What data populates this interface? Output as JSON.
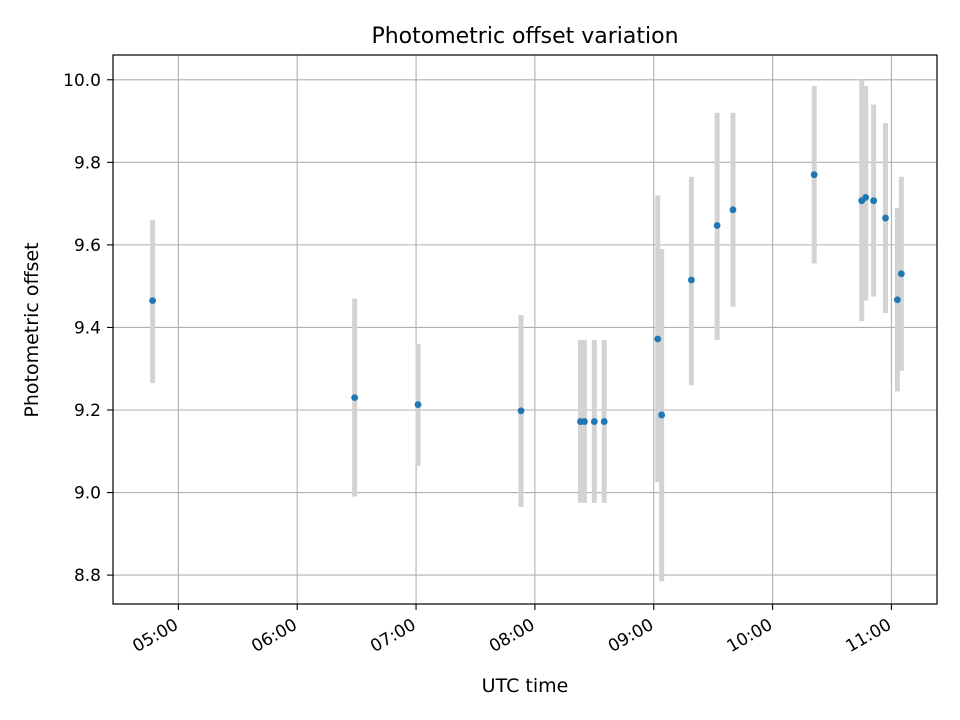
{
  "chart_data": {
    "type": "scatter",
    "title": "Photometric offset variation",
    "xlabel": "UTC time",
    "ylabel": "Photometric offset",
    "x_axis_type": "time",
    "xlim": [
      "04:27",
      "11:23"
    ],
    "ylim": [
      8.73,
      10.06
    ],
    "x_ticks": [
      "05:00",
      "06:00",
      "07:00",
      "08:00",
      "09:00",
      "10:00",
      "11:00"
    ],
    "y_ticks": [
      "8.8",
      "9.0",
      "9.2",
      "9.4",
      "9.6",
      "9.8",
      "10.0"
    ],
    "grid": true,
    "marker_color": "#1f77b4",
    "errorbar_color": "#d3d3d3",
    "points": [
      {
        "x": "04:47",
        "y": 9.465,
        "ylow": 9.265,
        "yhigh": 9.66
      },
      {
        "x": "06:29",
        "y": 9.23,
        "ylow": 8.99,
        "yhigh": 9.47
      },
      {
        "x": "07:01",
        "y": 9.213,
        "ylow": 9.065,
        "yhigh": 9.36
      },
      {
        "x": "07:53",
        "y": 9.198,
        "ylow": 8.965,
        "yhigh": 9.43
      },
      {
        "x": "08:23",
        "y": 9.172,
        "ylow": 8.975,
        "yhigh": 9.37
      },
      {
        "x": "08:25",
        "y": 9.172,
        "ylow": 8.975,
        "yhigh": 9.37
      },
      {
        "x": "08:30",
        "y": 9.172,
        "ylow": 8.975,
        "yhigh": 9.37
      },
      {
        "x": "08:35",
        "y": 9.172,
        "ylow": 8.975,
        "yhigh": 9.37
      },
      {
        "x": "09:02",
        "y": 9.372,
        "ylow": 9.025,
        "yhigh": 9.72
      },
      {
        "x": "09:04",
        "y": 9.188,
        "ylow": 8.785,
        "yhigh": 9.59
      },
      {
        "x": "09:19",
        "y": 9.515,
        "ylow": 9.26,
        "yhigh": 9.765
      },
      {
        "x": "09:32",
        "y": 9.647,
        "ylow": 9.37,
        "yhigh": 9.92
      },
      {
        "x": "09:40",
        "y": 9.685,
        "ylow": 9.45,
        "yhigh": 9.92
      },
      {
        "x": "10:21",
        "y": 9.77,
        "ylow": 9.555,
        "yhigh": 9.985
      },
      {
        "x": "10:45",
        "y": 9.707,
        "ylow": 9.415,
        "yhigh": 10.0
      },
      {
        "x": "10:47",
        "y": 9.715,
        "ylow": 9.465,
        "yhigh": 9.985
      },
      {
        "x": "10:51",
        "y": 9.707,
        "ylow": 9.475,
        "yhigh": 9.94
      },
      {
        "x": "10:57",
        "y": 9.665,
        "ylow": 9.435,
        "yhigh": 9.895
      },
      {
        "x": "11:03",
        "y": 9.467,
        "ylow": 9.245,
        "yhigh": 9.69
      },
      {
        "x": "11:05",
        "y": 9.53,
        "ylow": 9.295,
        "yhigh": 9.765
      }
    ]
  }
}
